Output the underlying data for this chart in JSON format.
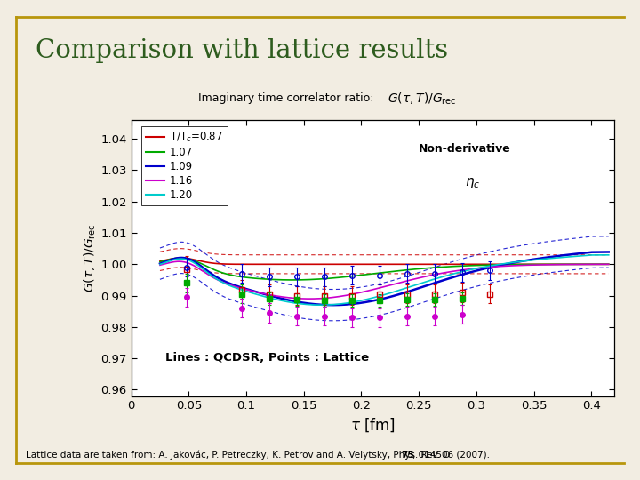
{
  "title": "Comparison with lattice results",
  "subtitle_plain": "Imaginary time correlator ratio:  ",
  "subtitle_math": "$G(\\tau, T)/G_\\mathrm{rec}$",
  "xlabel": "$\\tau$ [fm]",
  "ylabel": "$G(\\tau,T)/G_\\mathrm{rec}$",
  "xlim": [
    0,
    0.42
  ],
  "ylim": [
    0.958,
    1.046
  ],
  "yticks": [
    0.96,
    0.97,
    0.98,
    0.99,
    1.0,
    1.01,
    1.02,
    1.03,
    1.04
  ],
  "xticks": [
    0,
    0.05,
    0.1,
    0.15,
    0.2,
    0.25,
    0.3,
    0.35,
    0.4
  ],
  "slide_bg": "#f2ede2",
  "plot_bg": "#ffffff",
  "title_color": "#2e5c1e",
  "border_color": "#b8960c",
  "line_colors": [
    "#cc0000",
    "#00aa00",
    "#0000cc",
    "#cc00cc",
    "#00cccc"
  ],
  "legend_labels": [
    "T/T$_c$=0.87",
    "1.07",
    "1.09",
    "1.16",
    "1.20"
  ],
  "note_text": "Non-derivative",
  "eta_text": "$\\eta_c$",
  "bottom_text": "Lines : QCDSR, Points : Lattice",
  "citation": "Lattice data are taken from: A. Jakovác, P. Petreczky, K. Petrov and A. Velytsky, Phys. Rev. D ",
  "citation_bold": "75",
  "citation_end": ", 014506 (2007).",
  "tau_line_start": 0.025,
  "tau_line_end": 0.415
}
